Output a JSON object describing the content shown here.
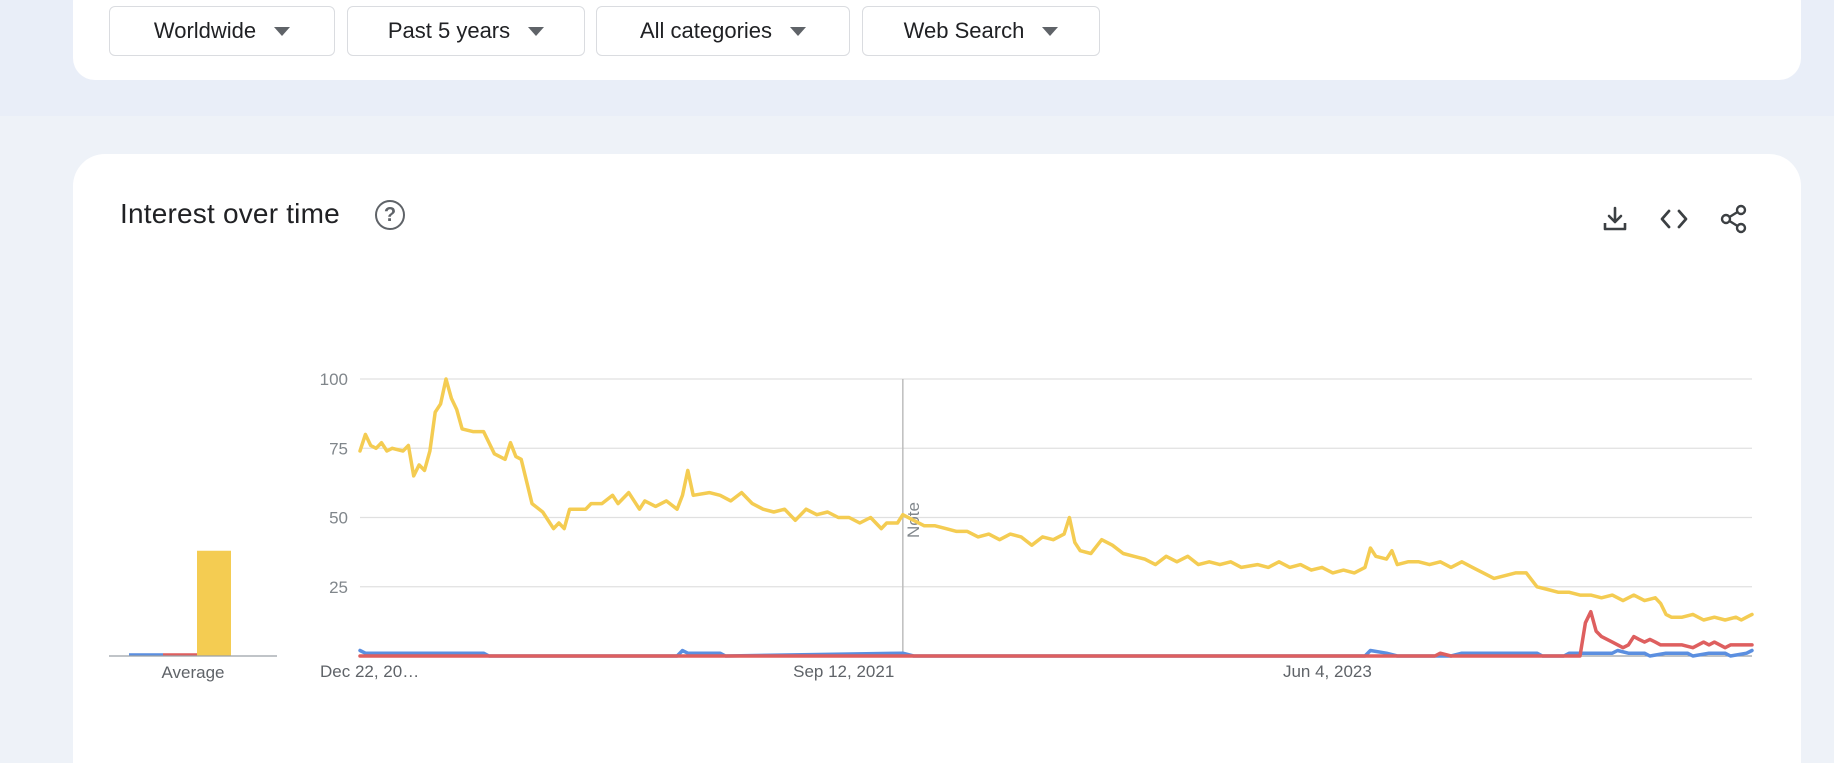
{
  "filters": {
    "region": "Worldwide",
    "time_range": "Past 5 years",
    "category": "All categories",
    "search_type": "Web Search"
  },
  "panel": {
    "title": "Interest over time",
    "help_icon": "help-circle-icon",
    "actions": [
      "download-icon",
      "embed-code-icon",
      "share-icon"
    ]
  },
  "colors": {
    "yellow": "#f4cc52",
    "red": "#de5f5f",
    "blue": "#5b8fe0",
    "grid": "#e0e0e0",
    "note_line": "#bdbdbd"
  },
  "chart_data": {
    "type": "line",
    "yticks": [
      100,
      75,
      50,
      25
    ],
    "ylim": [
      0,
      100
    ],
    "xtick_labels": [
      "Dec 22, 20…",
      "Sep 12, 2021",
      "Jun 4, 2023"
    ],
    "annotation": "Note",
    "average_label": "Average",
    "averages": [
      {
        "color": "blue",
        "value": 1
      },
      {
        "color": "red",
        "value": 1
      },
      {
        "color": "yellow",
        "value": 38
      }
    ],
    "x_start": "2019-12-22",
    "x_end": "2024-12-08",
    "x_ticks": [
      "2019-12-22",
      "2021-09-12",
      "2023-06-04"
    ],
    "note_date": "2021-11-28",
    "series": [
      {
        "color": "yellow",
        "points": [
          [
            "2019-12-22",
            74
          ],
          [
            "2019-12-29",
            80
          ],
          [
            "2020-01-05",
            76
          ],
          [
            "2020-01-12",
            75
          ],
          [
            "2020-01-19",
            77
          ],
          [
            "2020-01-26",
            74
          ],
          [
            "2020-02-02",
            75
          ],
          [
            "2020-02-16",
            74
          ],
          [
            "2020-02-23",
            76
          ],
          [
            "2020-03-01",
            65
          ],
          [
            "2020-03-08",
            69
          ],
          [
            "2020-03-15",
            67
          ],
          [
            "2020-03-22",
            74
          ],
          [
            "2020-03-29",
            88
          ],
          [
            "2020-04-05",
            91
          ],
          [
            "2020-04-12",
            100
          ],
          [
            "2020-04-19",
            93
          ],
          [
            "2020-04-26",
            89
          ],
          [
            "2020-05-03",
            82
          ],
          [
            "2020-05-17",
            81
          ],
          [
            "2020-05-31",
            81
          ],
          [
            "2020-06-14",
            73
          ],
          [
            "2020-06-28",
            71
          ],
          [
            "2020-07-05",
            77
          ],
          [
            "2020-07-12",
            72
          ],
          [
            "2020-07-19",
            71
          ],
          [
            "2020-08-02",
            55
          ],
          [
            "2020-08-16",
            52
          ],
          [
            "2020-08-30",
            46
          ],
          [
            "2020-09-06",
            48
          ],
          [
            "2020-09-13",
            46
          ],
          [
            "2020-09-20",
            53
          ],
          [
            "2020-10-11",
            53
          ],
          [
            "2020-10-18",
            55
          ],
          [
            "2020-11-01",
            55
          ],
          [
            "2020-11-15",
            58
          ],
          [
            "2020-11-22",
            55
          ],
          [
            "2020-12-06",
            59
          ],
          [
            "2020-12-20",
            53
          ],
          [
            "2020-12-27",
            56
          ],
          [
            "2021-01-10",
            54
          ],
          [
            "2021-01-24",
            56
          ],
          [
            "2021-02-07",
            53
          ],
          [
            "2021-02-14",
            58
          ],
          [
            "2021-02-21",
            67
          ],
          [
            "2021-02-28",
            58
          ],
          [
            "2021-03-21",
            59
          ],
          [
            "2021-04-04",
            58
          ],
          [
            "2021-04-18",
            56
          ],
          [
            "2021-05-02",
            59
          ],
          [
            "2021-05-16",
            55
          ],
          [
            "2021-05-30",
            53
          ],
          [
            "2021-06-13",
            52
          ],
          [
            "2021-06-27",
            53
          ],
          [
            "2021-07-11",
            49
          ],
          [
            "2021-07-25",
            53
          ],
          [
            "2021-08-08",
            51
          ],
          [
            "2021-08-22",
            52
          ],
          [
            "2021-09-05",
            50
          ],
          [
            "2021-09-19",
            50
          ],
          [
            "2021-10-03",
            48
          ],
          [
            "2021-10-17",
            50
          ],
          [
            "2021-10-31",
            46
          ],
          [
            "2021-11-07",
            48
          ],
          [
            "2021-11-21",
            48
          ],
          [
            "2021-11-28",
            51
          ],
          [
            "2021-12-12",
            49
          ],
          [
            "2021-12-26",
            47
          ],
          [
            "2022-01-09",
            47
          ],
          [
            "2022-01-23",
            46
          ],
          [
            "2022-02-06",
            45
          ],
          [
            "2022-02-20",
            45
          ],
          [
            "2022-03-06",
            43
          ],
          [
            "2022-03-20",
            44
          ],
          [
            "2022-04-03",
            42
          ],
          [
            "2022-04-17",
            44
          ],
          [
            "2022-05-01",
            43
          ],
          [
            "2022-05-15",
            40
          ],
          [
            "2022-05-29",
            43
          ],
          [
            "2022-06-12",
            42
          ],
          [
            "2022-06-26",
            44
          ],
          [
            "2022-07-03",
            50
          ],
          [
            "2022-07-10",
            41
          ],
          [
            "2022-07-17",
            38
          ],
          [
            "2022-07-31",
            37
          ],
          [
            "2022-08-14",
            42
          ],
          [
            "2022-08-28",
            40
          ],
          [
            "2022-09-11",
            37
          ],
          [
            "2022-09-25",
            36
          ],
          [
            "2022-10-09",
            35
          ],
          [
            "2022-10-23",
            33
          ],
          [
            "2022-11-06",
            36
          ],
          [
            "2022-11-20",
            34
          ],
          [
            "2022-12-04",
            36
          ],
          [
            "2022-12-18",
            33
          ],
          [
            "2023-01-01",
            34
          ],
          [
            "2023-01-15",
            33
          ],
          [
            "2023-01-29",
            34
          ],
          [
            "2023-02-12",
            32
          ],
          [
            "2023-03-05",
            33
          ],
          [
            "2023-03-19",
            32
          ],
          [
            "2023-04-02",
            34
          ],
          [
            "2023-04-16",
            32
          ],
          [
            "2023-04-30",
            33
          ],
          [
            "2023-05-14",
            31
          ],
          [
            "2023-05-28",
            32
          ],
          [
            "2023-06-11",
            30
          ],
          [
            "2023-06-25",
            31
          ],
          [
            "2023-07-09",
            30
          ],
          [
            "2023-07-23",
            32
          ],
          [
            "2023-07-30",
            39
          ],
          [
            "2023-08-06",
            36
          ],
          [
            "2023-08-20",
            35
          ],
          [
            "2023-08-27",
            38
          ],
          [
            "2023-09-03",
            33
          ],
          [
            "2023-09-17",
            34
          ],
          [
            "2023-10-01",
            34
          ],
          [
            "2023-10-15",
            33
          ],
          [
            "2023-10-29",
            34
          ],
          [
            "2023-11-12",
            32
          ],
          [
            "2023-11-26",
            34
          ],
          [
            "2023-12-10",
            32
          ],
          [
            "2023-12-24",
            30
          ],
          [
            "2024-01-07",
            28
          ],
          [
            "2024-01-21",
            29
          ],
          [
            "2024-02-04",
            30
          ],
          [
            "2024-02-18",
            30
          ],
          [
            "2024-03-03",
            25
          ],
          [
            "2024-03-17",
            24
          ],
          [
            "2024-03-31",
            23
          ],
          [
            "2024-04-14",
            23
          ],
          [
            "2024-04-28",
            22
          ],
          [
            "2024-05-12",
            22
          ],
          [
            "2024-05-26",
            21
          ],
          [
            "2024-06-09",
            22
          ],
          [
            "2024-06-23",
            20
          ],
          [
            "2024-07-07",
            22
          ],
          [
            "2024-07-21",
            20
          ],
          [
            "2024-08-04",
            21
          ],
          [
            "2024-08-11",
            19
          ],
          [
            "2024-08-18",
            15
          ],
          [
            "2024-08-25",
            14
          ],
          [
            "2024-09-08",
            14
          ],
          [
            "2024-09-22",
            15
          ],
          [
            "2024-10-06",
            13
          ],
          [
            "2024-10-20",
            14
          ],
          [
            "2024-11-03",
            13
          ],
          [
            "2024-11-17",
            14
          ],
          [
            "2024-11-24",
            13
          ],
          [
            "2024-12-01",
            14
          ],
          [
            "2024-12-08",
            15
          ]
        ]
      },
      {
        "color": "blue",
        "points": [
          [
            "2019-12-22",
            2
          ],
          [
            "2019-12-29",
            1
          ],
          [
            "2020-03-29",
            1
          ],
          [
            "2020-04-05",
            1
          ],
          [
            "2020-05-31",
            1
          ],
          [
            "2020-06-07",
            0
          ],
          [
            "2021-02-07",
            0
          ],
          [
            "2021-02-14",
            2
          ],
          [
            "2021-02-21",
            1
          ],
          [
            "2021-04-04",
            1
          ],
          [
            "2021-04-11",
            0
          ],
          [
            "2021-11-28",
            1
          ],
          [
            "2021-12-12",
            0
          ],
          [
            "2023-07-23",
            0
          ],
          [
            "2023-07-30",
            2
          ],
          [
            "2023-08-20",
            1
          ],
          [
            "2023-09-03",
            0
          ],
          [
            "2023-11-12",
            0
          ],
          [
            "2023-11-26",
            1
          ],
          [
            "2024-03-03",
            1
          ],
          [
            "2024-03-10",
            0
          ],
          [
            "2024-04-07",
            0
          ],
          [
            "2024-04-14",
            1
          ],
          [
            "2024-06-09",
            1
          ],
          [
            "2024-06-16",
            2
          ],
          [
            "2024-06-30",
            1
          ],
          [
            "2024-07-21",
            1
          ],
          [
            "2024-07-28",
            0
          ],
          [
            "2024-08-18",
            1
          ],
          [
            "2024-09-15",
            1
          ],
          [
            "2024-09-22",
            0
          ],
          [
            "2024-10-13",
            1
          ],
          [
            "2024-11-03",
            1
          ],
          [
            "2024-11-10",
            0
          ],
          [
            "2024-12-01",
            1
          ],
          [
            "2024-12-08",
            2
          ]
        ]
      },
      {
        "color": "red",
        "points": [
          [
            "2019-12-22",
            0
          ],
          [
            "2023-10-22",
            0
          ],
          [
            "2023-10-29",
            1
          ],
          [
            "2023-11-12",
            0
          ],
          [
            "2024-04-28",
            0
          ],
          [
            "2024-05-05",
            12
          ],
          [
            "2024-05-12",
            16
          ],
          [
            "2024-05-19",
            9
          ],
          [
            "2024-05-26",
            7
          ],
          [
            "2024-06-09",
            5
          ],
          [
            "2024-06-23",
            3
          ],
          [
            "2024-06-30",
            4
          ],
          [
            "2024-07-07",
            7
          ],
          [
            "2024-07-14",
            6
          ],
          [
            "2024-07-21",
            5
          ],
          [
            "2024-07-28",
            6
          ],
          [
            "2024-08-04",
            5
          ],
          [
            "2024-08-11",
            4
          ],
          [
            "2024-09-08",
            4
          ],
          [
            "2024-09-22",
            3
          ],
          [
            "2024-10-06",
            5
          ],
          [
            "2024-10-13",
            4
          ],
          [
            "2024-10-20",
            5
          ],
          [
            "2024-11-03",
            3
          ],
          [
            "2024-11-10",
            4
          ],
          [
            "2024-12-08",
            4
          ]
        ]
      }
    ]
  }
}
